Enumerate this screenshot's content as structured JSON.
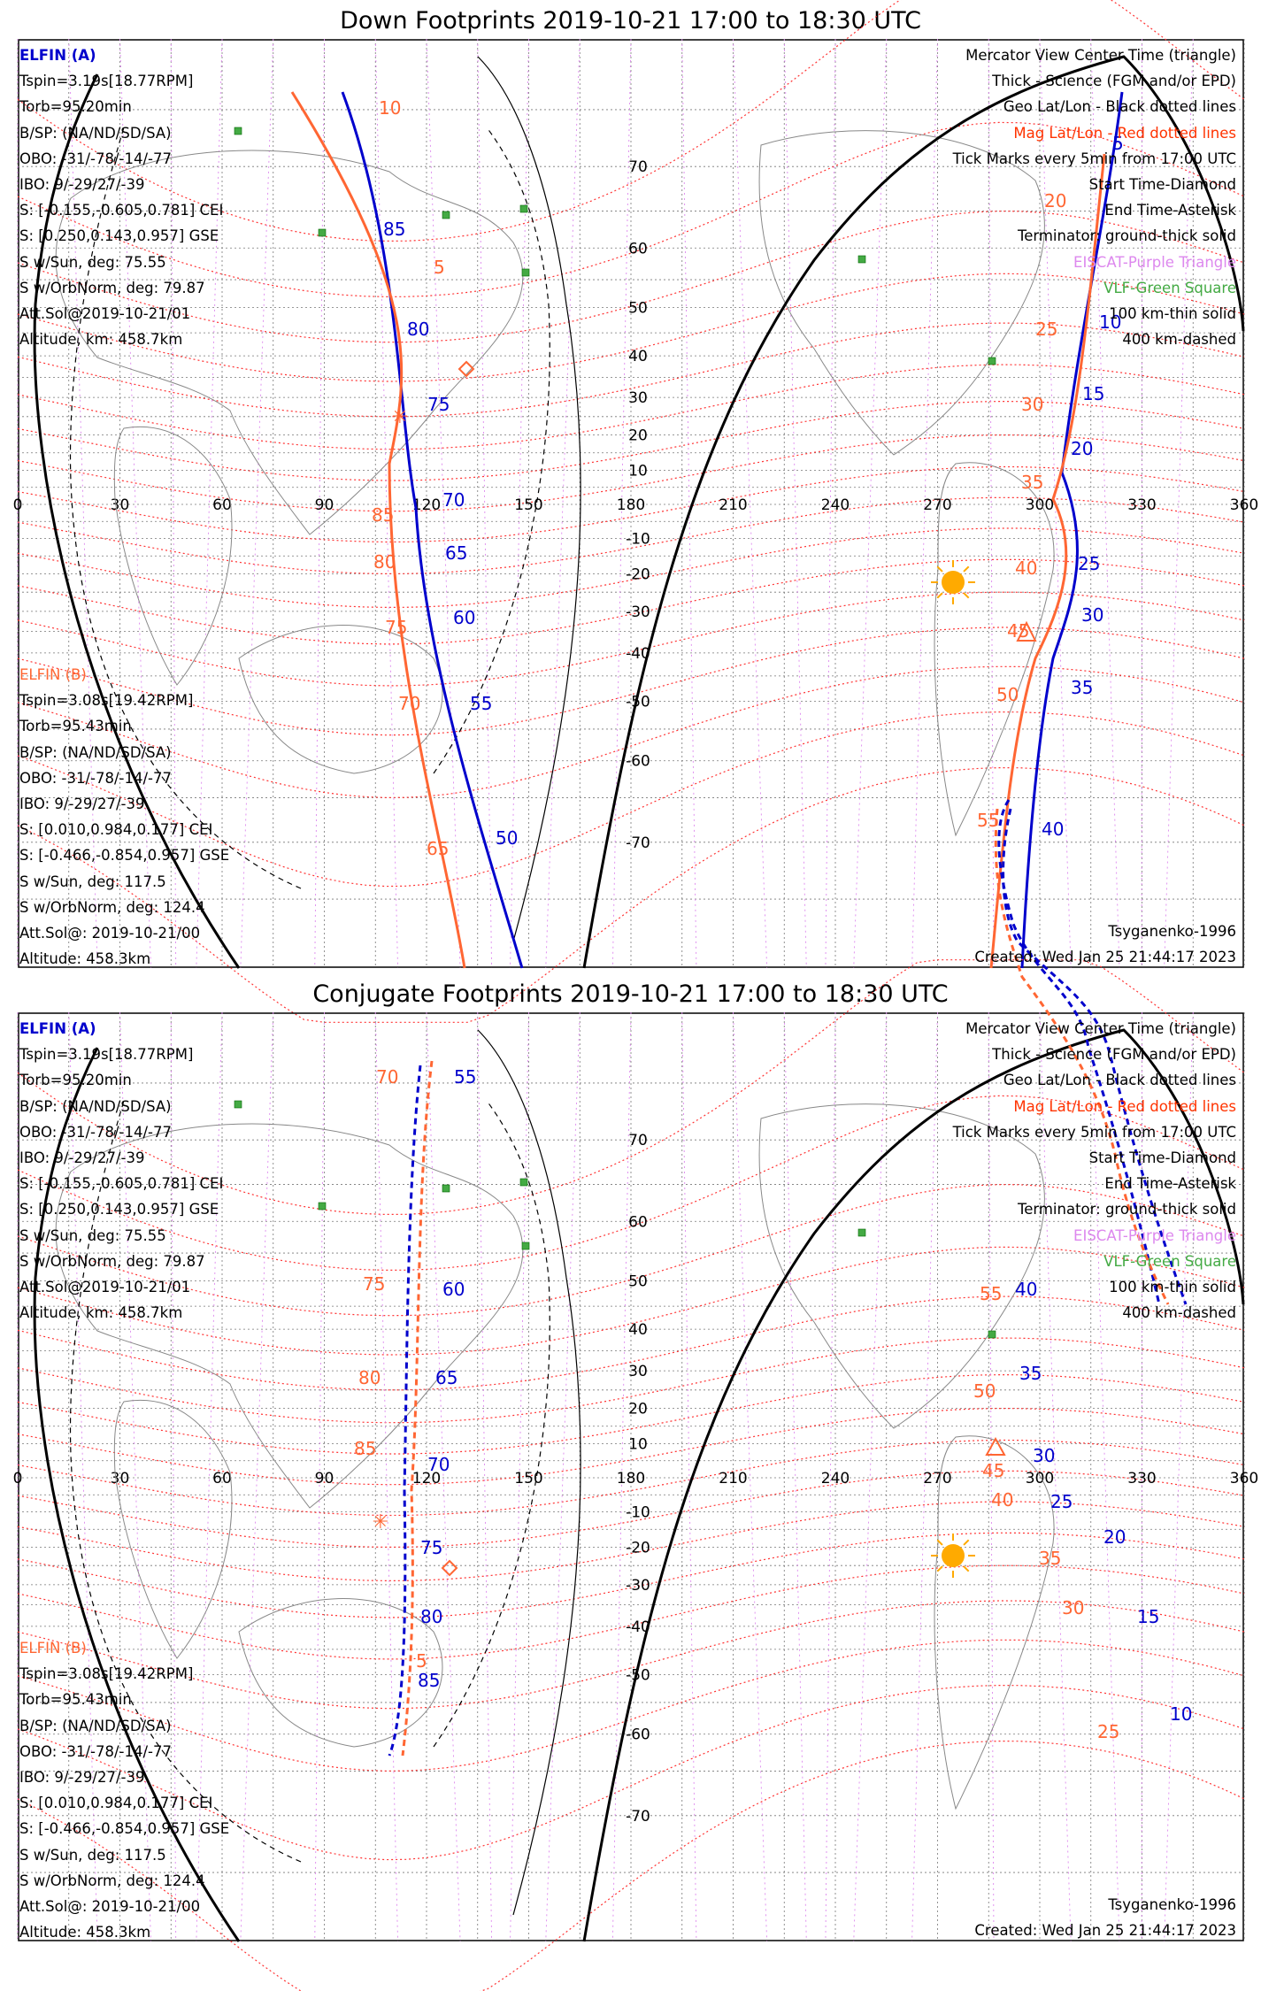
{
  "titles": {
    "down": "Down Footprints 2019-10-21 17:00 to 18:30 UTC",
    "conjugate": "Conjugate Footprints 2019-10-21 17:00 to 18:30 UTC"
  },
  "elfin_a": {
    "header": "ELFIN (A)",
    "lines": [
      "Tspin=3.19s[18.77RPM]",
      "Torb=95.20min",
      "B/SP: (NA/ND/SD/SA)",
      "OBO: -31/-78/-14/-77",
      "IBO: 9/-29/27/-39",
      "S: [-0.155,-0.605,0.781] CEI",
      "S: [0.250,0.143,0.957] GSE",
      "S w/Sun, deg: 75.55",
      "S w/OrbNorm, deg: 79.87",
      "Att.Sol@2019-10-21/01",
      "Altitude, km: 458.7km"
    ]
  },
  "elfin_b": {
    "header": "ELFIN (B)",
    "lines": [
      "Tspin=3.08s[19.42RPM]",
      "Torb=95.43min",
      "B/SP: (NA/ND/SD/SA)",
      "OBO: -31/-78/-14/-77",
      "IBO: 9/-29/27/-39",
      "S: [0.010,0.984,0.177] CEI",
      "S: [-0.466,-0.854,0.957] GSE",
      "S w/Sun, deg: 117.5",
      "S w/OrbNorm, deg: 124.4",
      "Att.Sol@: 2019-10-21/00",
      "Altitude: 458.3km"
    ]
  },
  "legend": [
    "Mercator View Center Time (triangle)",
    "Thick - Science (FGM and/or EPD)",
    "Geo Lat/Lon - Black dotted lines",
    "Mag Lat/Lon - Red dotted lines",
    "Tick Marks every 5min from 17:00 UTC",
    "Start Time-Diamond",
    "End Time-Asterisk",
    "Terminator: ground-thick solid",
    "EISCAT-Purple Triangle",
    "VLF-Green Square",
    "100 km-thin solid",
    "400 km-dashed"
  ],
  "colors": {
    "elfin_a": "#0000cc",
    "elfin_b": "#ff6633",
    "mag_grid": "#ff3333",
    "geo_grid": "#000000",
    "eiscat": "#dd88ee",
    "vlf": "#44aa44",
    "sun": "#ffaa00"
  },
  "footer": {
    "model": "Tsyganenko-1996",
    "created": "Created: Wed Jan 25 21:44:17 2023"
  },
  "map": {
    "projection": "Mercator",
    "lon_ticks": [
      "0",
      "30",
      "60",
      "90",
      "120",
      "150",
      "180",
      "210",
      "240",
      "270",
      "300",
      "330",
      "360"
    ],
    "lat_ticks": [
      "70",
      "60",
      "50",
      "40",
      "30",
      "20",
      "10",
      "-10",
      "-20",
      "-30",
      "-40",
      "-50",
      "-60",
      "-70"
    ]
  },
  "down_track_a_labels": [
    "85",
    "80",
    "75",
    "70",
    "65",
    "60",
    "55",
    "50",
    "5",
    "10",
    "15",
    "20",
    "25",
    "30",
    "35",
    "40"
  ],
  "down_track_b_labels": [
    "10",
    "5",
    "85",
    "80",
    "75",
    "70",
    "65",
    "20",
    "25",
    "30",
    "35",
    "40",
    "45",
    "50",
    "55"
  ],
  "conj_track_a_labels": [
    "55",
    "60",
    "65",
    "70",
    "75",
    "80",
    "85",
    "40",
    "35",
    "30",
    "25",
    "20",
    "15",
    "10"
  ],
  "conj_track_b_labels": [
    "70",
    "75",
    "80",
    "85",
    "5",
    "55",
    "50",
    "45",
    "40",
    "35",
    "30",
    "25"
  ]
}
